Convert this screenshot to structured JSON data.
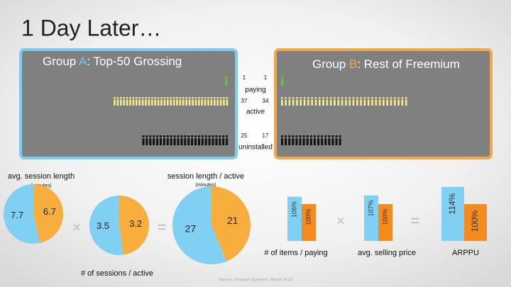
{
  "title": "1 Day Later…",
  "groups": [
    {
      "prefix": "Group ",
      "letter": "A",
      "name": ":  Top-50 Grossing",
      "color": "#6fc8f0"
    },
    {
      "prefix": "Group ",
      "letter": "B",
      "name": ":  Rest of Freemium",
      "color": "#f0a848"
    }
  ],
  "metrics": [
    {
      "label": "paying",
      "a": 1,
      "b": 1,
      "color": "#6dbb3b"
    },
    {
      "label": "active",
      "a": 37,
      "b": 34,
      "color": "#f2ef8a"
    },
    {
      "label": "uninstalled",
      "a": 25,
      "b": 17,
      "color": "#111111"
    }
  ],
  "chart_data": [
    {
      "type": "pie",
      "title": "avg. session length",
      "subtitle": "(minutes)",
      "values": [
        6.7,
        7.7
      ],
      "colors": [
        "#f7ae3d",
        "#80d0f4"
      ]
    },
    {
      "type": "pie",
      "title": "# of sessions / active",
      "values": [
        3.2,
        3.5
      ],
      "colors": [
        "#f7ae3d",
        "#80d0f4"
      ]
    },
    {
      "type": "pie",
      "title": "session length / active",
      "subtitle": "(minutes)",
      "values": [
        21,
        27
      ],
      "colors": [
        "#f7ae3d",
        "#80d0f4"
      ]
    },
    {
      "type": "bar",
      "title": "# of items / paying",
      "values": [
        106,
        100
      ],
      "value_labels": [
        "106%",
        "100%"
      ],
      "colors": [
        "#80d0f4",
        "#f58a1f"
      ],
      "ylim": [
        70,
        130
      ]
    },
    {
      "type": "bar",
      "title": "avg. selling price",
      "values": [
        107,
        100
      ],
      "value_labels": [
        "107%",
        "100%"
      ],
      "colors": [
        "#80d0f4",
        "#f58a1f"
      ],
      "ylim": [
        70,
        130
      ]
    },
    {
      "type": "bar",
      "title": "ARPPU",
      "values": [
        114,
        100
      ],
      "value_labels": [
        "114%",
        "100%"
      ],
      "colors": [
        "#80d0f4",
        "#f58a1f"
      ],
      "ylim": [
        70,
        130
      ]
    }
  ],
  "source": "Source:  Amazon Appstore, March 2014"
}
